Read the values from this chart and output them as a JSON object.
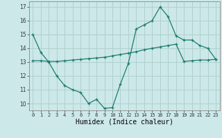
{
  "xlabel": "Humidex (Indice chaleur)",
  "x": [
    0,
    1,
    2,
    3,
    4,
    5,
    6,
    7,
    8,
    9,
    10,
    11,
    12,
    13,
    14,
    15,
    16,
    17,
    18,
    19,
    20,
    21,
    22,
    23
  ],
  "line1": [
    15.0,
    13.7,
    13.0,
    12.0,
    11.3,
    11.0,
    10.8,
    10.0,
    10.3,
    9.65,
    9.7,
    11.4,
    12.9,
    15.4,
    15.7,
    16.0,
    17.0,
    16.3,
    14.9,
    14.6,
    14.6,
    14.2,
    14.0,
    13.2
  ],
  "line2": [
    13.1,
    13.1,
    13.05,
    13.05,
    13.1,
    13.15,
    13.2,
    13.25,
    13.3,
    13.35,
    13.45,
    13.55,
    13.65,
    13.75,
    13.9,
    14.0,
    14.1,
    14.2,
    14.3,
    13.05,
    13.1,
    13.15,
    13.15,
    13.2
  ],
  "line_color": "#1a7a6e",
  "bg_color": "#cce8e8",
  "grid_color": "#b0d0d0",
  "ylim": [
    9.5,
    17.4
  ],
  "yticks": [
    10,
    11,
    12,
    13,
    14,
    15,
    16,
    17
  ],
  "xlim": [
    -0.5,
    23.5
  ]
}
